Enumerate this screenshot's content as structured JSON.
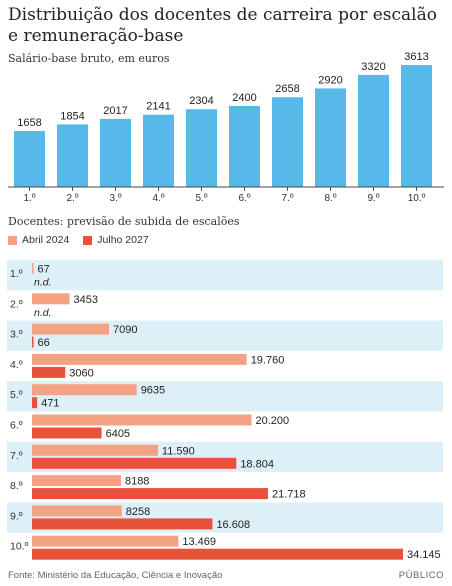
{
  "header": {
    "title": "Distribuição dos docentes de carreira por escalão e remuneração-base",
    "subtitle": "Salário-base bruto, em euros"
  },
  "section2": {
    "title": "Docentes: previsão de subida de escalões"
  },
  "legend": {
    "series_a": "Abril 2024",
    "series_b": "Julho 2027"
  },
  "colors": {
    "salary_bar": "#56B9E8",
    "series_a": "#F4A284",
    "series_b": "#E8523A",
    "row_band": "#DDF0F8"
  },
  "footer": {
    "source": "Fonte: Ministério da Educação, Ciência e Inovação",
    "brand": "PÚBLICO"
  },
  "chart_data": [
    {
      "type": "bar",
      "categories": [
        "1.º",
        "2.º",
        "3.º",
        "4.º",
        "5.º",
        "6.º",
        "7.º",
        "8.º",
        "9.º",
        "10.º"
      ],
      "values": [
        1658,
        1854,
        2017,
        2141,
        2304,
        2400,
        2658,
        2920,
        3320,
        3613
      ],
      "value_labels": [
        "1658",
        "1854",
        "2017",
        "2141",
        "2304",
        "2400",
        "2658",
        "2920",
        "3320",
        "3613"
      ],
      "title": "",
      "ylabel": "Salário-base bruto, em euros",
      "ylim": [
        0,
        3613
      ]
    },
    {
      "type": "bar",
      "orientation": "horizontal",
      "categories": [
        "1.º",
        "2.º",
        "3.º",
        "4.º",
        "5.º",
        "6.º",
        "7.º",
        "8.º",
        "9.º",
        "10.º"
      ],
      "xlim": [
        0,
        34145
      ],
      "series": [
        {
          "name": "Abril 2024",
          "values": [
            67,
            3453,
            7090,
            19760,
            9635,
            20200,
            11590,
            8188,
            8258,
            13469
          ],
          "labels": [
            "67",
            "3453",
            "7090",
            "19.760",
            "9635",
            "20.200",
            "11.590",
            "8188",
            "8258",
            "13.469"
          ]
        },
        {
          "name": "Julho 2027",
          "values": [
            null,
            null,
            66,
            3060,
            471,
            6405,
            18804,
            21718,
            16608,
            34145
          ],
          "labels": [
            "n.d.",
            "n.d.",
            "66",
            "3060",
            "471",
            "6405",
            "18.804",
            "21.718",
            "16.608",
            "34.145"
          ]
        }
      ]
    }
  ]
}
